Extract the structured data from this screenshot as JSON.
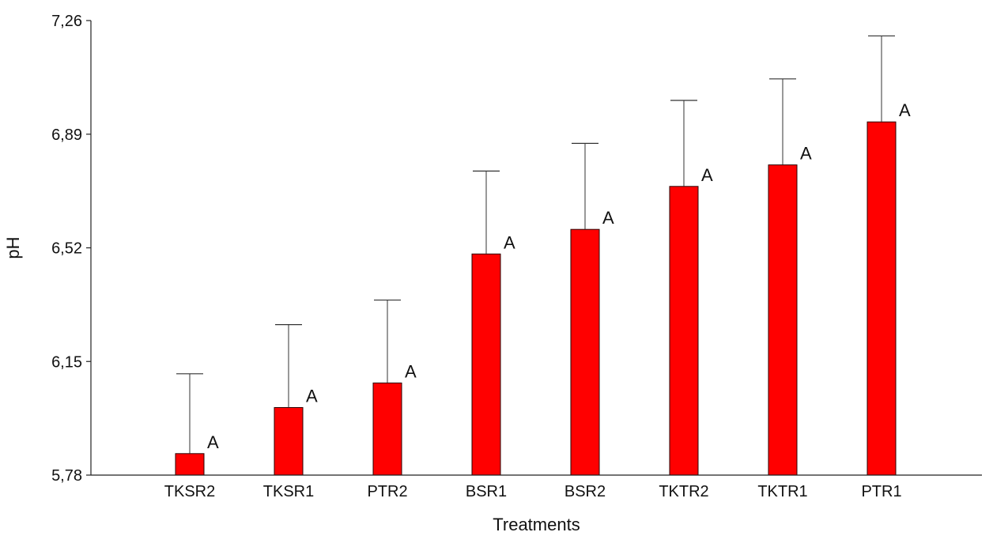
{
  "chart_data": {
    "type": "bar",
    "title": "",
    "xlabel": "Treatments",
    "ylabel": "pH",
    "ylim": [
      5.78,
      7.26
    ],
    "yticks": [
      "5,78",
      "6,15",
      "6,52",
      "6,89",
      "7,26"
    ],
    "ytick_values": [
      5.78,
      6.15,
      6.52,
      6.89,
      7.26
    ],
    "categories": [
      "TKSR2",
      "TKSR1",
      "PTR2",
      "BSR1",
      "BSR2",
      "TKTR2",
      "TKTR1",
      "PTR1"
    ],
    "values": [
      5.85,
      6.0,
      6.08,
      6.5,
      6.58,
      6.72,
      6.79,
      6.93
    ],
    "error_upper": [
      6.11,
      6.27,
      6.35,
      6.77,
      6.86,
      7.0,
      7.07,
      7.21
    ],
    "significance_labels": [
      "A",
      "A",
      "A",
      "A",
      "A",
      "A",
      "A",
      "A"
    ],
    "grid": false,
    "legend": "none",
    "colors": {
      "bar": "#ff0000",
      "bar_outline": "#2a0000",
      "error_bar": "#333333",
      "axis": "#222222"
    }
  }
}
